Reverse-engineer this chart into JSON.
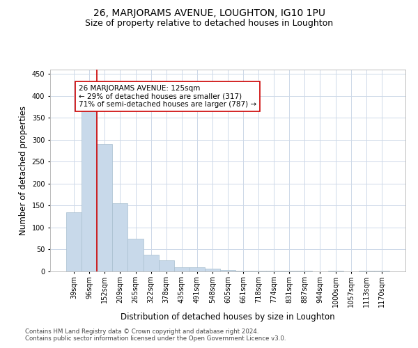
{
  "title": "26, MARJORAMS AVENUE, LOUGHTON, IG10 1PU",
  "subtitle": "Size of property relative to detached houses in Loughton",
  "xlabel": "Distribution of detached houses by size in Loughton",
  "ylabel": "Number of detached properties",
  "bar_values": [
    135,
    370,
    290,
    155,
    75,
    38,
    25,
    10,
    10,
    6,
    3,
    2,
    2,
    1,
    1,
    1,
    0,
    1,
    0,
    1,
    1
  ],
  "bar_labels": [
    "39sqm",
    "96sqm",
    "152sqm",
    "209sqm",
    "265sqm",
    "322sqm",
    "378sqm",
    "435sqm",
    "491sqm",
    "548sqm",
    "605sqm",
    "661sqm",
    "718sqm",
    "774sqm",
    "831sqm",
    "887sqm",
    "944sqm",
    "1000sqm",
    "1057sqm",
    "1113sqm",
    "1170sqm"
  ],
  "bar_color": "#c8d9ea",
  "bar_edge_color": "#a8bfcf",
  "property_line_x": 1.5,
  "annotation_text": "26 MARJORAMS AVENUE: 125sqm\n← 29% of detached houses are smaller (317)\n71% of semi-detached houses are larger (787) →",
  "annotation_box_color": "#ffffff",
  "annotation_box_edge": "#cc0000",
  "red_line_color": "#cc0000",
  "ylim": [
    0,
    460
  ],
  "yticks": [
    0,
    50,
    100,
    150,
    200,
    250,
    300,
    350,
    400,
    450
  ],
  "footnote1": "Contains HM Land Registry data © Crown copyright and database right 2024.",
  "footnote2": "Contains public sector information licensed under the Open Government Licence v3.0.",
  "background_color": "#ffffff",
  "grid_color": "#cdd8e8",
  "title_fontsize": 10,
  "subtitle_fontsize": 9,
  "axis_label_fontsize": 8.5,
  "tick_fontsize": 7,
  "annot_fontsize": 7.5
}
